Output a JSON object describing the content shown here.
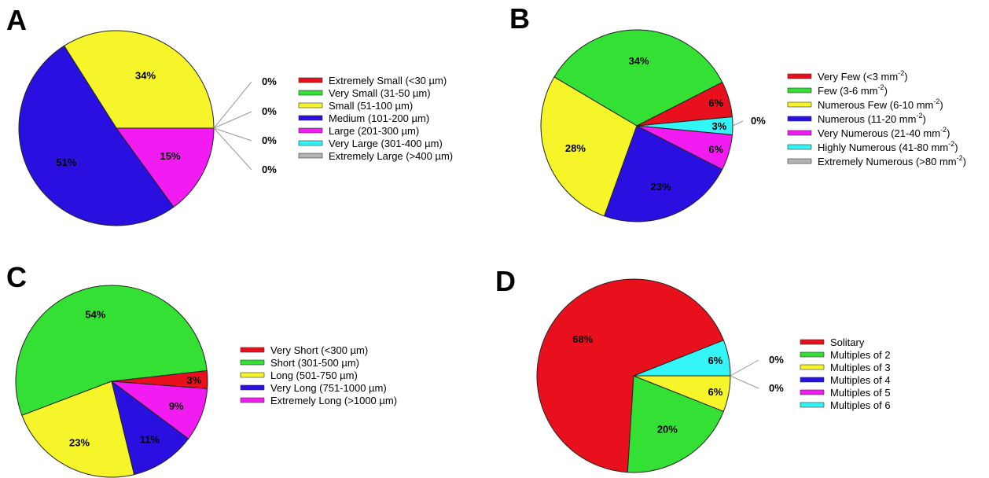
{
  "chart_data": [
    {
      "panel": "A",
      "type": "pie",
      "series": [
        {
          "label": "Extremely Small (<30 µm)",
          "value": 0,
          "color": "#e8101c",
          "display": "0%"
        },
        {
          "label": "Very Small (31-50 µm)",
          "value": 0,
          "color": "#33e033",
          "display": "0%"
        },
        {
          "label": "Small (51-100 µm)",
          "value": 34,
          "color": "#f5f52a",
          "display": "34%"
        },
        {
          "label": "Medium (101-200 µm)",
          "value": 51,
          "color": "#2a10e0",
          "display": "51%"
        },
        {
          "label": "Large (201-300 µm)",
          "value": 15,
          "color": "#f21cf2",
          "display": "15%"
        },
        {
          "label": "Very Large (301-400 µm)",
          "value": 0,
          "color": "#33f5f5",
          "display": "0%"
        },
        {
          "label": "Extremely Large (>400 µm)",
          "value": 0,
          "color": "#b4b4b4",
          "display": "0%"
        }
      ]
    },
    {
      "panel": "B",
      "type": "pie",
      "series": [
        {
          "label": "Very Few (<3 mm",
          "sup": "-2",
          "value": 6,
          "color": "#e8101c",
          "display": "6%"
        },
        {
          "label": "Few (3-6 mm",
          "sup": "-2",
          "value": 34,
          "color": "#33e033",
          "display": "34%"
        },
        {
          "label": "Numerous Few (6-10 mm",
          "sup": "-2",
          "value": 28,
          "color": "#f5f52a",
          "display": "28%"
        },
        {
          "label": "Numerous (11-20 mm",
          "sup": "-2",
          "value": 23,
          "color": "#2a10e0",
          "display": "23%"
        },
        {
          "label": "Very Numerous (21-40 mm",
          "sup": "-2",
          "value": 6,
          "color": "#f21cf2",
          "display": "6%"
        },
        {
          "label": "Highly Numerous (41-80 mm",
          "sup": "-2",
          "value": 3,
          "color": "#33f5f5",
          "display": "3%"
        },
        {
          "label": "Extremely Numerous (>80 mm",
          "sup": "-2",
          "value": 0,
          "color": "#b4b4b4",
          "display": "0%"
        }
      ]
    },
    {
      "panel": "C",
      "type": "pie",
      "series": [
        {
          "label": "Very Short (<300 µm)",
          "value": 3,
          "color": "#e8101c",
          "display": "3%"
        },
        {
          "label": "Short (301-500 µm)",
          "value": 54,
          "color": "#33e033",
          "display": "54%"
        },
        {
          "label": "Long (501-750 µm)",
          "value": 23,
          "color": "#f5f52a",
          "display": "23%"
        },
        {
          "label": "Very Long (751-1000 µm)",
          "value": 11,
          "color": "#2a10e0",
          "display": "11%"
        },
        {
          "label": "Extremely Long (>1000 µm)",
          "value": 9,
          "color": "#f21cf2",
          "display": "9%"
        }
      ]
    },
    {
      "panel": "D",
      "type": "pie",
      "series": [
        {
          "label": "Solitary",
          "value": 68,
          "color": "#e8101c",
          "display": "68%"
        },
        {
          "label": "Multiples of 2",
          "value": 20,
          "color": "#33e033",
          "display": "20%"
        },
        {
          "label": "Multiples of 3",
          "value": 6,
          "color": "#f5f52a",
          "display": "6%"
        },
        {
          "label": "Multiples of 4",
          "value": 0,
          "color": "#2a10e0",
          "display": "0%"
        },
        {
          "label": "Multiples of 5",
          "value": 0,
          "color": "#f21cf2",
          "display": "0%"
        },
        {
          "label": "Multiples of 6",
          "value": 6,
          "color": "#33f5f5",
          "display": "6%"
        }
      ]
    }
  ]
}
